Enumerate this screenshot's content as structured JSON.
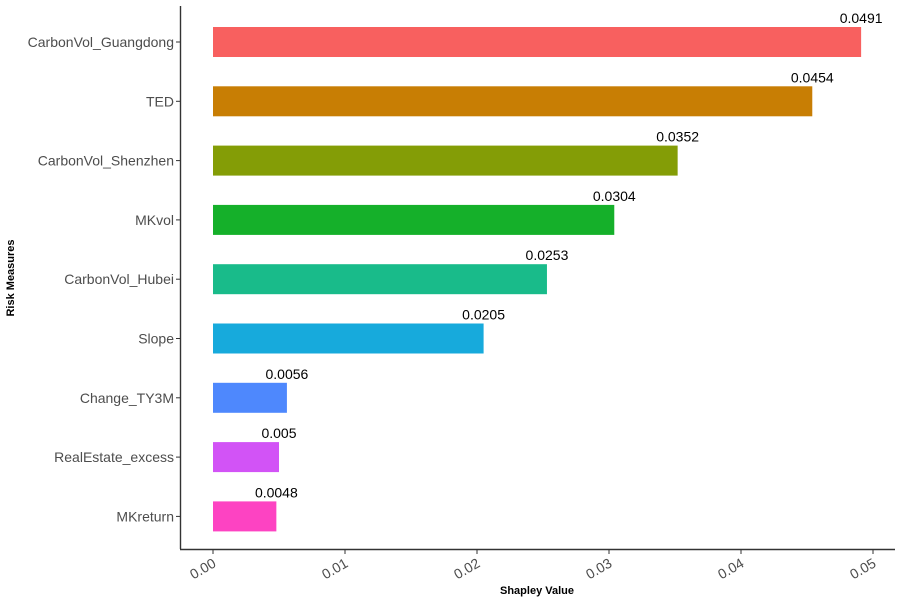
{
  "chart_data": {
    "type": "bar",
    "orientation": "horizontal",
    "categories": [
      "CarbonVol_Guangdong",
      "TED",
      "CarbonVol_Shenzhen",
      "MKvol",
      "CarbonVol_Hubei",
      "Slope",
      "Change_TY3M",
      "RealEstate_excess",
      "MKreturn"
    ],
    "values": [
      0.0491,
      0.0454,
      0.0352,
      0.0304,
      0.0253,
      0.0205,
      0.0056,
      0.005,
      0.0048
    ],
    "data_labels": [
      "0.0491",
      "0.0454",
      "0.0352",
      "0.0304",
      "0.0253",
      "0.0205",
      "0.0056",
      "0.005",
      "0.0048"
    ],
    "colors": [
      "#F8605F",
      "#C87E04",
      "#849D06",
      "#15B02A",
      "#19BB8A",
      "#17AADC",
      "#4E88FD",
      "#D253F6",
      "#FD43C2"
    ],
    "xlabel": "Shapley Value",
    "ylabel": "Risk Measures",
    "xlim": [
      -0.0025,
      0.0515
    ],
    "x_ticks": [
      0,
      0.01,
      0.02,
      0.03,
      0.04,
      0.05
    ],
    "x_tick_labels": [
      "0.00",
      "0.01",
      "0.02",
      "0.03",
      "0.04",
      "0.05"
    ],
    "grid": false,
    "legend": "none"
  }
}
